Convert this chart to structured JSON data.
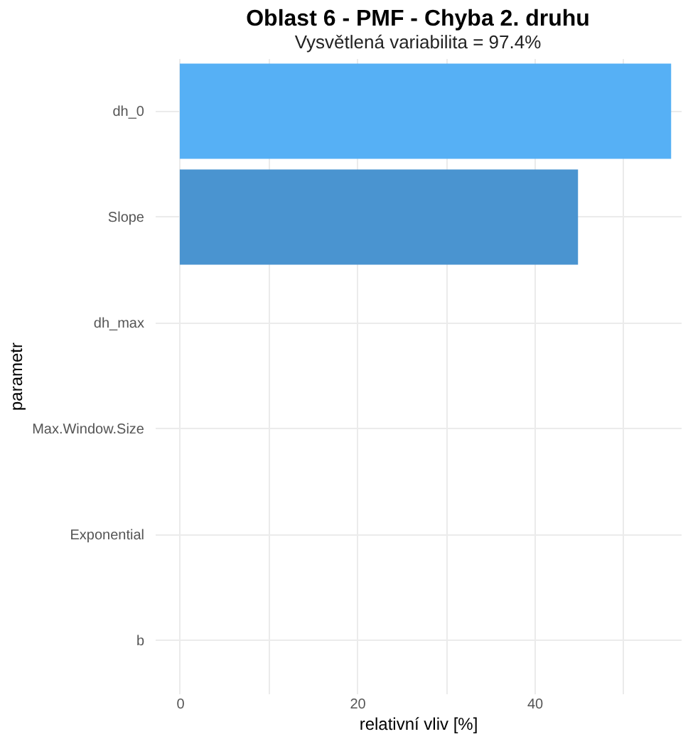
{
  "chart_data": {
    "type": "bar",
    "orientation": "horizontal",
    "title": "Oblast 6 - PMF - Chyba 2. druhu",
    "subtitle": "Vysvětlená variabilita = 97.4%",
    "xlabel": "relativní vliv [%]",
    "ylabel": "parametr",
    "categories": [
      "dh_0",
      "Slope",
      "dh_max",
      "Max.Window.Size",
      "Exponential",
      "b"
    ],
    "values": [
      55.4,
      44.9,
      0,
      0,
      0,
      0
    ],
    "colors": [
      "#56b0f5",
      "#4a94d0",
      "#4a94d0",
      "#4a94d0",
      "#4a94d0",
      "#4a94d0"
    ],
    "xlim": [
      -2.8,
      56.5
    ],
    "xticks": [
      0,
      {
        "value": 10,
        "label": null
      },
      20,
      {
        "value": 30,
        "label": null
      },
      40,
      {
        "value": 50,
        "label": null
      }
    ],
    "grid": true
  }
}
